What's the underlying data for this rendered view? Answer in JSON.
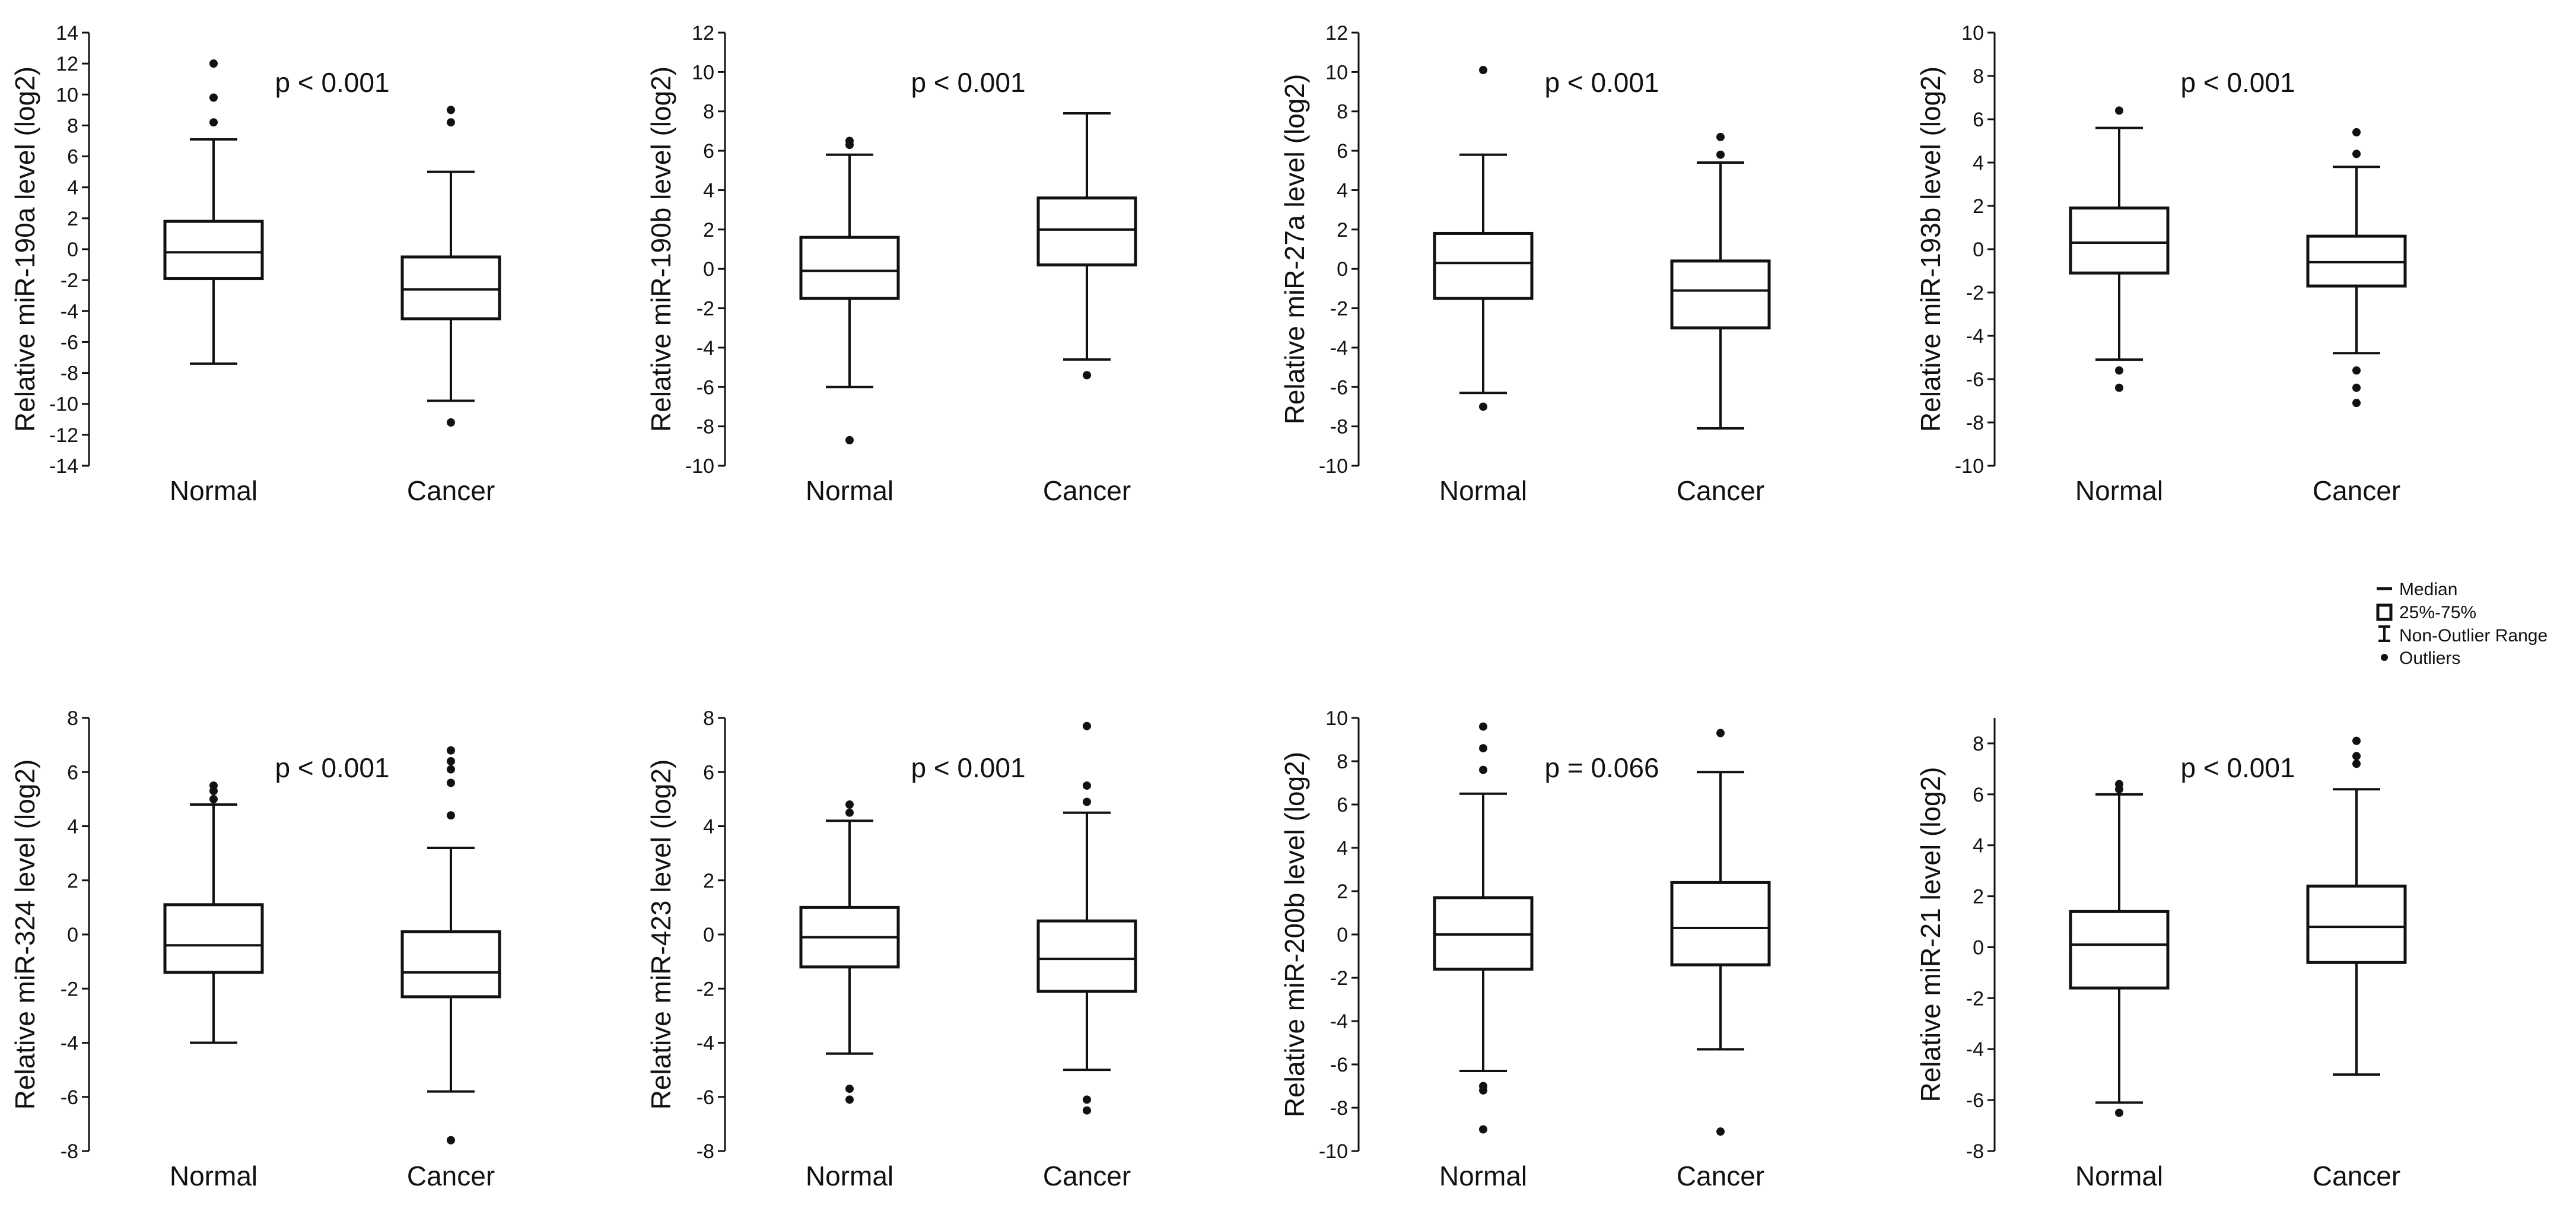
{
  "figure_title": "",
  "colors": {
    "ink": "#111111",
    "background": "#ffffff"
  },
  "legend": {
    "median": "Median",
    "box": "25%-75%",
    "whisker": "Non-Outlier Range",
    "outliers": "Outliers"
  },
  "chart_data": [
    {
      "type": "box",
      "title": "",
      "ylabel": "Relative miR-190a level (log2)",
      "xlabel": "",
      "ylim": [
        -14,
        14
      ],
      "yticks": [
        -14,
        -12,
        -10,
        -8,
        -6,
        -4,
        -2,
        0,
        2,
        4,
        6,
        8,
        10,
        12,
        14
      ],
      "pvalue": "p < 0.001",
      "categories": [
        "Normal",
        "Cancer"
      ],
      "series": [
        {
          "name": "Normal",
          "median": -0.2,
          "q1": -1.9,
          "q3": 1.8,
          "whisker_low": -7.4,
          "whisker_high": 7.1,
          "outliers": [
            8.2,
            9.8,
            12.0
          ]
        },
        {
          "name": "Cancer",
          "median": -2.6,
          "q1": -4.5,
          "q3": -0.5,
          "whisker_low": -9.8,
          "whisker_high": 5.0,
          "outliers": [
            -11.2,
            8.2,
            9.0
          ]
        }
      ]
    },
    {
      "type": "box",
      "title": "",
      "ylabel": "Relative miR-190b level (log2)",
      "xlabel": "",
      "ylim": [
        -10,
        12
      ],
      "yticks": [
        -10,
        -8,
        -6,
        -4,
        -2,
        0,
        2,
        4,
        6,
        8,
        10,
        12
      ],
      "pvalue": "p < 0.001",
      "categories": [
        "Normal",
        "Cancer"
      ],
      "series": [
        {
          "name": "Normal",
          "median": -0.1,
          "q1": -1.5,
          "q3": 1.6,
          "whisker_low": -6.0,
          "whisker_high": 5.8,
          "outliers": [
            -8.7,
            6.3,
            6.5
          ]
        },
        {
          "name": "Cancer",
          "median": 2.0,
          "q1": 0.2,
          "q3": 3.6,
          "whisker_low": -4.6,
          "whisker_high": 7.9,
          "outliers": [
            -5.4
          ]
        }
      ]
    },
    {
      "type": "box",
      "title": "",
      "ylabel": "Relative miR-27a level (log2)",
      "xlabel": "",
      "ylim": [
        -10,
        12
      ],
      "yticks": [
        -10,
        -8,
        -6,
        -4,
        -2,
        0,
        2,
        4,
        6,
        8,
        10,
        12
      ],
      "pvalue": "p < 0.001",
      "categories": [
        "Normal",
        "Cancer"
      ],
      "series": [
        {
          "name": "Normal",
          "median": 0.3,
          "q1": -1.5,
          "q3": 1.8,
          "whisker_low": -6.3,
          "whisker_high": 5.8,
          "outliers": [
            -7.0,
            10.1
          ]
        },
        {
          "name": "Cancer",
          "median": -1.1,
          "q1": -3.0,
          "q3": 0.4,
          "whisker_low": -8.1,
          "whisker_high": 5.4,
          "outliers": [
            5.8,
            6.7
          ]
        }
      ]
    },
    {
      "type": "box",
      "title": "",
      "ylabel": "Relative miR-193b level (log2)",
      "xlabel": "",
      "ylim": [
        -10,
        10
      ],
      "yticks": [
        -10,
        -8,
        -6,
        -4,
        -2,
        0,
        2,
        4,
        6,
        8,
        10
      ],
      "pvalue": "p < 0.001",
      "categories": [
        "Normal",
        "Cancer"
      ],
      "series": [
        {
          "name": "Normal",
          "median": 0.3,
          "q1": -1.1,
          "q3": 1.9,
          "whisker_low": -5.1,
          "whisker_high": 5.6,
          "outliers": [
            -6.4,
            -5.6,
            6.4
          ]
        },
        {
          "name": "Cancer",
          "median": -0.6,
          "q1": -1.7,
          "q3": 0.6,
          "whisker_low": -4.8,
          "whisker_high": 3.8,
          "outliers": [
            -7.1,
            -6.4,
            -5.6,
            4.4,
            5.4
          ]
        }
      ]
    },
    {
      "type": "box",
      "title": "",
      "ylabel": "Relative miR-324 level (log2)",
      "xlabel": "",
      "ylim": [
        -8,
        8
      ],
      "yticks": [
        -8,
        -6,
        -4,
        -2,
        0,
        2,
        4,
        6,
        8
      ],
      "pvalue": "p < 0.001",
      "categories": [
        "Normal",
        "Cancer"
      ],
      "series": [
        {
          "name": "Normal",
          "median": -0.4,
          "q1": -1.4,
          "q3": 1.1,
          "whisker_low": -4.0,
          "whisker_high": 4.8,
          "outliers": [
            5.0,
            5.3,
            5.5
          ]
        },
        {
          "name": "Cancer",
          "median": -1.4,
          "q1": -2.3,
          "q3": 0.1,
          "whisker_low": -5.8,
          "whisker_high": 3.2,
          "outliers": [
            -7.6,
            4.4,
            5.6,
            6.1,
            6.4,
            6.8
          ]
        }
      ]
    },
    {
      "type": "box",
      "title": "",
      "ylabel": "Relative miR-423 level (log2)",
      "xlabel": "",
      "ylim": [
        -8,
        8
      ],
      "yticks": [
        -8,
        -6,
        -4,
        -2,
        0,
        2,
        4,
        6,
        8
      ],
      "pvalue": "p < 0.001",
      "categories": [
        "Normal",
        "Cancer"
      ],
      "series": [
        {
          "name": "Normal",
          "median": -0.1,
          "q1": -1.2,
          "q3": 1.0,
          "whisker_low": -4.4,
          "whisker_high": 4.2,
          "outliers": [
            -6.1,
            -5.7,
            4.5,
            4.8
          ]
        },
        {
          "name": "Cancer",
          "median": -0.9,
          "q1": -2.1,
          "q3": 0.5,
          "whisker_low": -5.0,
          "whisker_high": 4.5,
          "outliers": [
            -6.5,
            -6.1,
            4.9,
            5.5,
            7.7
          ]
        }
      ]
    },
    {
      "type": "box",
      "title": "",
      "ylabel": "Relative miR-200b level (log2)",
      "xlabel": "",
      "ylim": [
        -10,
        10
      ],
      "yticks": [
        -10,
        -8,
        -6,
        -4,
        -2,
        0,
        2,
        4,
        6,
        8,
        10
      ],
      "pvalue": "p = 0.066",
      "categories": [
        "Normal",
        "Cancer"
      ],
      "series": [
        {
          "name": "Normal",
          "median": 0.0,
          "q1": -1.6,
          "q3": 1.7,
          "whisker_low": -6.3,
          "whisker_high": 6.5,
          "outliers": [
            -9.0,
            -7.2,
            -7.0,
            7.6,
            8.6,
            9.6
          ]
        },
        {
          "name": "Cancer",
          "median": 0.3,
          "q1": -1.4,
          "q3": 2.4,
          "whisker_low": -5.3,
          "whisker_high": 7.5,
          "outliers": [
            -9.1,
            9.3
          ]
        }
      ]
    },
    {
      "type": "box",
      "title": "",
      "ylabel": "Relative miR-21 level (log2)",
      "xlabel": "",
      "ylim": [
        -8,
        9
      ],
      "yticks": [
        -8,
        -6,
        -4,
        -2,
        0,
        2,
        4,
        6,
        8
      ],
      "pvalue": "p < 0.001",
      "categories": [
        "Normal",
        "Cancer"
      ],
      "series": [
        {
          "name": "Normal",
          "median": 0.1,
          "q1": -1.6,
          "q3": 1.4,
          "whisker_low": -6.1,
          "whisker_high": 6.0,
          "outliers": [
            -6.5,
            6.2,
            6.4
          ]
        },
        {
          "name": "Cancer",
          "median": 0.8,
          "q1": -0.6,
          "q3": 2.4,
          "whisker_low": -5.0,
          "whisker_high": 6.2,
          "outliers": [
            7.2,
            7.5,
            8.1
          ]
        }
      ]
    }
  ]
}
